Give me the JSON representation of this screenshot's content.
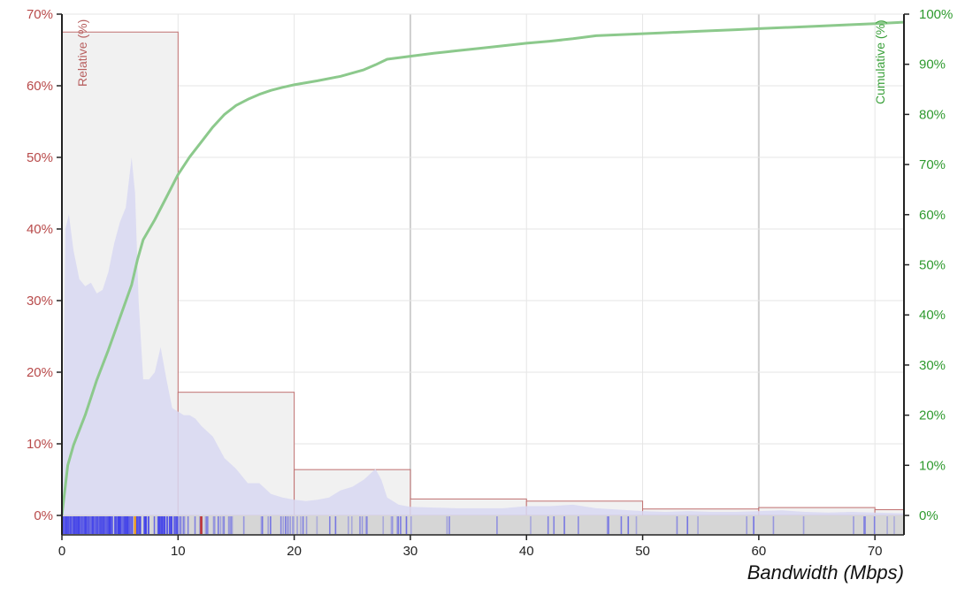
{
  "chart_data": {
    "type": "bar",
    "xlabel": "Bandwidth (Mbps)",
    "ylabel_left": "Relative (%)",
    "ylabel_right": "Cumulative (%)",
    "xlim": [
      0,
      72.5
    ],
    "ylim_left": [
      0,
      70
    ],
    "ylim_right": [
      0,
      100
    ],
    "x_ticks": [
      "0",
      "10",
      "20",
      "30",
      "40",
      "50",
      "60",
      "70"
    ],
    "y_left_ticks": [
      "0%",
      "10%",
      "20%",
      "30%",
      "40%",
      "50%",
      "60%",
      "70%"
    ],
    "y_right_ticks": [
      "0%",
      "10%",
      "20%",
      "30%",
      "40%",
      "50%",
      "60%",
      "70%",
      "80%",
      "90%",
      "100%"
    ],
    "grid": true,
    "colors": {
      "histogram_fill": "#f1f1f1",
      "histogram_stroke": "#c07070",
      "density_fill": "#d8d8f2",
      "cumulative_line": "#8cc98c",
      "left_axis": "#b84a4a",
      "right_axis": "#2e9a2e",
      "rug_background": "#d6d6d6",
      "rug_mark": "#3b3bea"
    },
    "histogram": [
      {
        "x0": 0,
        "x1": 10,
        "value": 67.5
      },
      {
        "x0": 10,
        "x1": 20,
        "value": 17.2
      },
      {
        "x0": 20,
        "x1": 30,
        "value": 6.4
      },
      {
        "x0": 30,
        "x1": 40,
        "value": 2.3
      },
      {
        "x0": 40,
        "x1": 50,
        "value": 2.0
      },
      {
        "x0": 50,
        "x1": 60,
        "value": 0.9
      },
      {
        "x0": 60,
        "x1": 70,
        "value": 1.1
      },
      {
        "x0": 70,
        "x1": 72.5,
        "value": 0.8
      }
    ],
    "density": {
      "x": [
        0,
        0.3,
        0.6,
        1,
        1.5,
        2,
        2.5,
        3,
        3.5,
        4,
        4.5,
        5,
        5.5,
        6,
        6.3,
        6.6,
        7,
        7.5,
        8,
        8.5,
        9,
        9.5,
        10,
        10.5,
        11,
        11.5,
        12,
        13,
        14,
        15,
        16,
        17,
        18,
        19,
        20,
        21,
        22,
        23,
        24,
        25,
        26,
        27,
        27.5,
        28,
        29,
        30,
        32,
        34,
        36,
        38,
        40,
        42,
        44,
        46,
        48,
        50,
        52,
        54,
        56,
        58,
        60,
        62,
        64,
        66,
        68,
        70,
        72.5
      ],
      "y": [
        0,
        40,
        42,
        37,
        33,
        32,
        32.5,
        31,
        31.5,
        34,
        38,
        41,
        43,
        50,
        45,
        30,
        19,
        19,
        20,
        23.5,
        19,
        15,
        14.5,
        14,
        14,
        13.5,
        12.5,
        11,
        8,
        6.5,
        4.5,
        4.5,
        3,
        2.5,
        2.2,
        2,
        2.2,
        2.5,
        3.5,
        4,
        5,
        6.5,
        5,
        2.5,
        1.5,
        1.2,
        1.1,
        1.0,
        1.0,
        1.0,
        1.3,
        1.3,
        1.5,
        1.0,
        0.8,
        0.6,
        0.5,
        0.6,
        0.5,
        0.5,
        0.6,
        0.7,
        0.5,
        0.4,
        0.5,
        0.4,
        0.3
      ]
    },
    "cumulative": {
      "x": [
        0,
        0.5,
        1,
        2,
        3,
        4,
        5,
        6,
        6.5,
        7,
        8,
        9,
        10,
        11,
        12,
        13,
        14,
        15,
        16,
        17,
        18,
        19,
        20,
        22,
        24,
        26,
        27,
        28,
        30,
        32,
        34,
        36,
        38,
        40,
        42,
        44,
        46,
        48,
        50,
        52,
        55,
        58,
        60,
        62,
        65,
        68,
        70,
        72.5
      ],
      "y": [
        0,
        10,
        14,
        20,
        27,
        33,
        39.5,
        46,
        51,
        55,
        59,
        63.5,
        68,
        71.5,
        74.5,
        77.5,
        80,
        81.8,
        83,
        84,
        84.8,
        85.4,
        85.9,
        86.7,
        87.6,
        88.9,
        89.9,
        91.0,
        91.6,
        92.2,
        92.7,
        93.2,
        93.7,
        94.2,
        94.6,
        95.1,
        95.7,
        95.9,
        96.1,
        96.3,
        96.6,
        96.9,
        97.1,
        97.3,
        97.6,
        97.9,
        98.1,
        98.4
      ]
    }
  }
}
